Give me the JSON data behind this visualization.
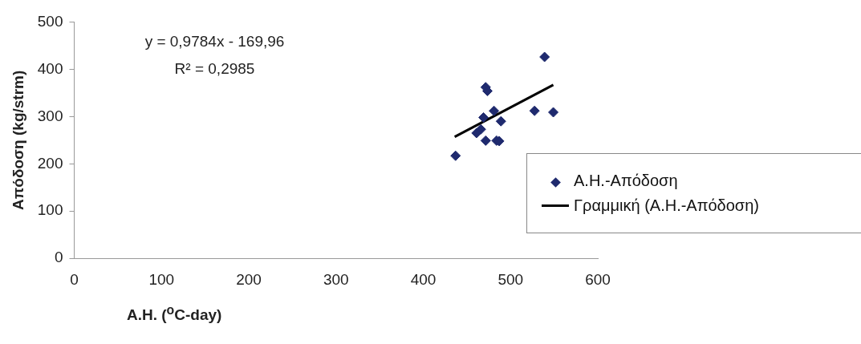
{
  "chart_data": {
    "type": "scatter",
    "xlabel": "A.H. ($^{o}$C-day)",
    "ylabel": "Απόδοση (kg/strm)",
    "annotations": [
      "y = 0,9784x - 169,96",
      "R² = 0,2985"
    ],
    "xlim": [
      0,
      600
    ],
    "xticks": [
      0,
      100,
      200,
      300,
      400,
      500,
      600
    ],
    "ylim": [
      0,
      500
    ],
    "yticks": [
      0,
      100,
      200,
      300,
      400,
      500
    ],
    "grid": false,
    "legend": "right",
    "marker": "diamond",
    "series": [
      {
        "name": "Α.Η.-Απόδοση",
        "type": "scatter",
        "color": "#1f2a6e",
        "x": [
          437,
          471.5,
          473.5,
          539,
          481,
          469,
          489,
          527.5,
          549,
          466,
          461,
          471.5,
          484,
          487
        ],
        "values": [
          217,
          362,
          354,
          426,
          312,
          298,
          290,
          312,
          309,
          273,
          265,
          249,
          249,
          248
        ]
      },
      {
        "name": "Γραμμική (Α.Η.-Απόδοση)",
        "type": "line",
        "color": "#000000",
        "marker": "none",
        "line_style": "solid",
        "x": [
          436,
          549
        ],
        "values": [
          257,
          367
        ]
      }
    ]
  }
}
